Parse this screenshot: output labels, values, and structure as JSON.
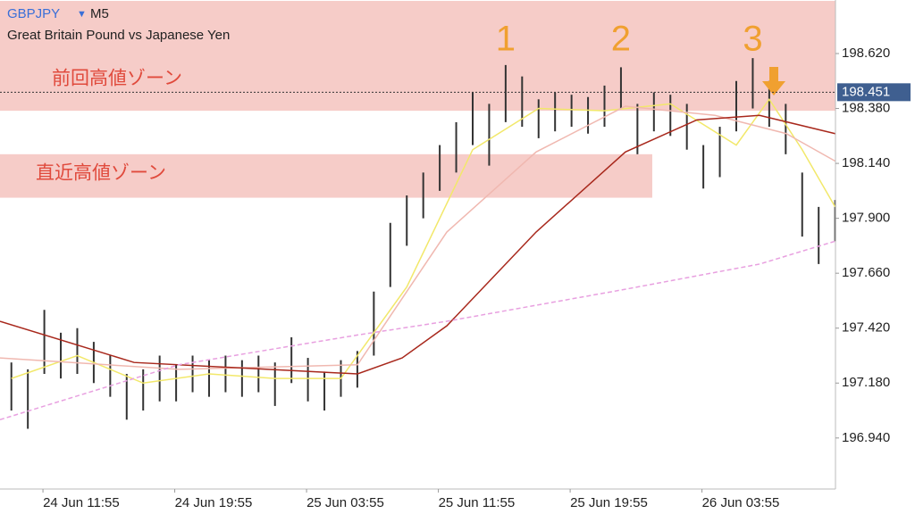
{
  "chart_data": {
    "type": "candlestick",
    "title": "GBPJPY",
    "timeframe": "M5",
    "subtitle": "Great Britain Pound vs Japanese Yen",
    "color": "#333333",
    "x": [
      10,
      11,
      12,
      13,
      14,
      15,
      16,
      17,
      18,
      19,
      20,
      21,
      22,
      23,
      24,
      25,
      26,
      27,
      28,
      29,
      30,
      31,
      32,
      33,
      34,
      35,
      36,
      37,
      38,
      39,
      40,
      41,
      42,
      43,
      44,
      45,
      46,
      47,
      48,
      49,
      50,
      51,
      52,
      53,
      54,
      55,
      56,
      57,
      58,
      59,
      60
    ],
    "high": [
      197.27,
      197.24,
      197.5,
      197.4,
      197.42,
      197.36,
      197.3,
      197.22,
      197.24,
      197.3,
      197.26,
      197.3,
      197.28,
      197.3,
      197.28,
      197.3,
      197.27,
      197.38,
      197.29,
      197.23,
      197.28,
      197.32,
      197.58,
      197.88,
      198.0,
      198.1,
      198.22,
      198.32,
      198.45,
      198.4,
      198.57,
      198.52,
      198.42,
      198.45,
      198.44,
      198.43,
      198.48,
      198.56,
      198.4,
      198.45,
      198.44,
      198.4,
      198.22,
      198.3,
      198.5,
      198.6,
      198.5,
      198.4,
      198.1,
      197.95,
      197.98
    ],
    "low": [
      197.06,
      196.98,
      197.22,
      197.2,
      197.22,
      197.18,
      197.12,
      197.02,
      197.06,
      197.1,
      197.1,
      197.14,
      197.12,
      197.14,
      197.12,
      197.14,
      197.08,
      197.18,
      197.1,
      197.06,
      197.12,
      197.16,
      197.3,
      197.6,
      197.78,
      197.9,
      198.02,
      198.1,
      198.22,
      198.13,
      198.32,
      198.3,
      198.25,
      198.28,
      198.3,
      198.27,
      198.3,
      198.38,
      198.18,
      198.28,
      198.26,
      198.2,
      198.03,
      198.08,
      198.28,
      198.38,
      198.3,
      198.18,
      197.82,
      197.7,
      197.8
    ],
    "overlays": [
      {
        "color": "#f2e86a",
        "dashed": false,
        "x": [
          10,
          14,
          18,
          22,
          26,
          30,
          34,
          38,
          42,
          46,
          50,
          54,
          56,
          58,
          60
        ],
        "values": [
          197.2,
          197.3,
          197.18,
          197.22,
          197.2,
          197.2,
          197.6,
          198.2,
          198.38,
          198.37,
          198.4,
          198.22,
          198.42,
          198.2,
          197.95
        ]
      },
      {
        "color": "#f0b8b0",
        "dashed": false,
        "x": [
          9.31,
          20.16,
          31.01,
          36.43,
          41.85,
          47.27,
          52.7,
          57.04,
          60
        ],
        "values": [
          197.29,
          197.24,
          197.26,
          197.84,
          198.19,
          198.39,
          198.35,
          198.27,
          198.15
        ]
      },
      {
        "color": "#a8281c",
        "dashed": false,
        "x": [
          9.31,
          17.45,
          25.58,
          31.01,
          33.72,
          36.43,
          41.85,
          47.27,
          51.61,
          55.41,
          60
        ],
        "values": [
          197.45,
          197.27,
          197.24,
          197.22,
          197.29,
          197.43,
          197.84,
          198.19,
          198.33,
          198.35,
          198.27
        ]
      },
      {
        "color": "#e8a0e0",
        "dashed": true,
        "x": [
          9.31,
          20.16,
          31.01,
          36.43,
          47.27,
          55.41,
          60
        ],
        "values": [
          197.02,
          197.26,
          197.39,
          197.45,
          197.59,
          197.7,
          197.8
        ]
      }
    ],
    "zones": [
      {
        "label": "前回高値ゾーン",
        "from": 198.37,
        "to": 198.85,
        "x_end": 60.02
      },
      {
        "label": "直近高値ゾーン",
        "from": 197.99,
        "to": 198.18,
        "x_end": 48.9
      }
    ],
    "annotations": [
      {
        "text": "1",
        "x": 40
      },
      {
        "text": "2",
        "x": 47
      },
      {
        "text": "3",
        "x": 55
      }
    ],
    "current_price": {
      "value": 198.451,
      "label": "198.451"
    },
    "xlim": [
      9.31,
      60.02
    ],
    "ylim": [
      196.717,
      198.854
    ],
    "xticks": [
      {
        "value": 11.917,
        "label": "24 Jun 11:55"
      },
      {
        "value": 19.917,
        "label": "24 Jun 19:55"
      },
      {
        "value": 27.917,
        "label": "25 Jun 03:55"
      },
      {
        "value": 35.917,
        "label": "25 Jun 11:55"
      },
      {
        "value": 43.917,
        "label": "25 Jun 19:55"
      },
      {
        "value": 51.917,
        "label": "26 Jun 03:55"
      }
    ],
    "yticks": [
      {
        "value": 196.94,
        "label": "196.940"
      },
      {
        "value": 197.18,
        "label": "197.180"
      },
      {
        "value": 197.42,
        "label": "197.420"
      },
      {
        "value": 197.66,
        "label": "197.660"
      },
      {
        "value": 197.9,
        "label": "197.900"
      },
      {
        "value": 198.14,
        "label": "198.140"
      },
      {
        "value": 198.38,
        "label": "198.380"
      },
      {
        "value": 198.62,
        "label": "198.620"
      }
    ]
  }
}
